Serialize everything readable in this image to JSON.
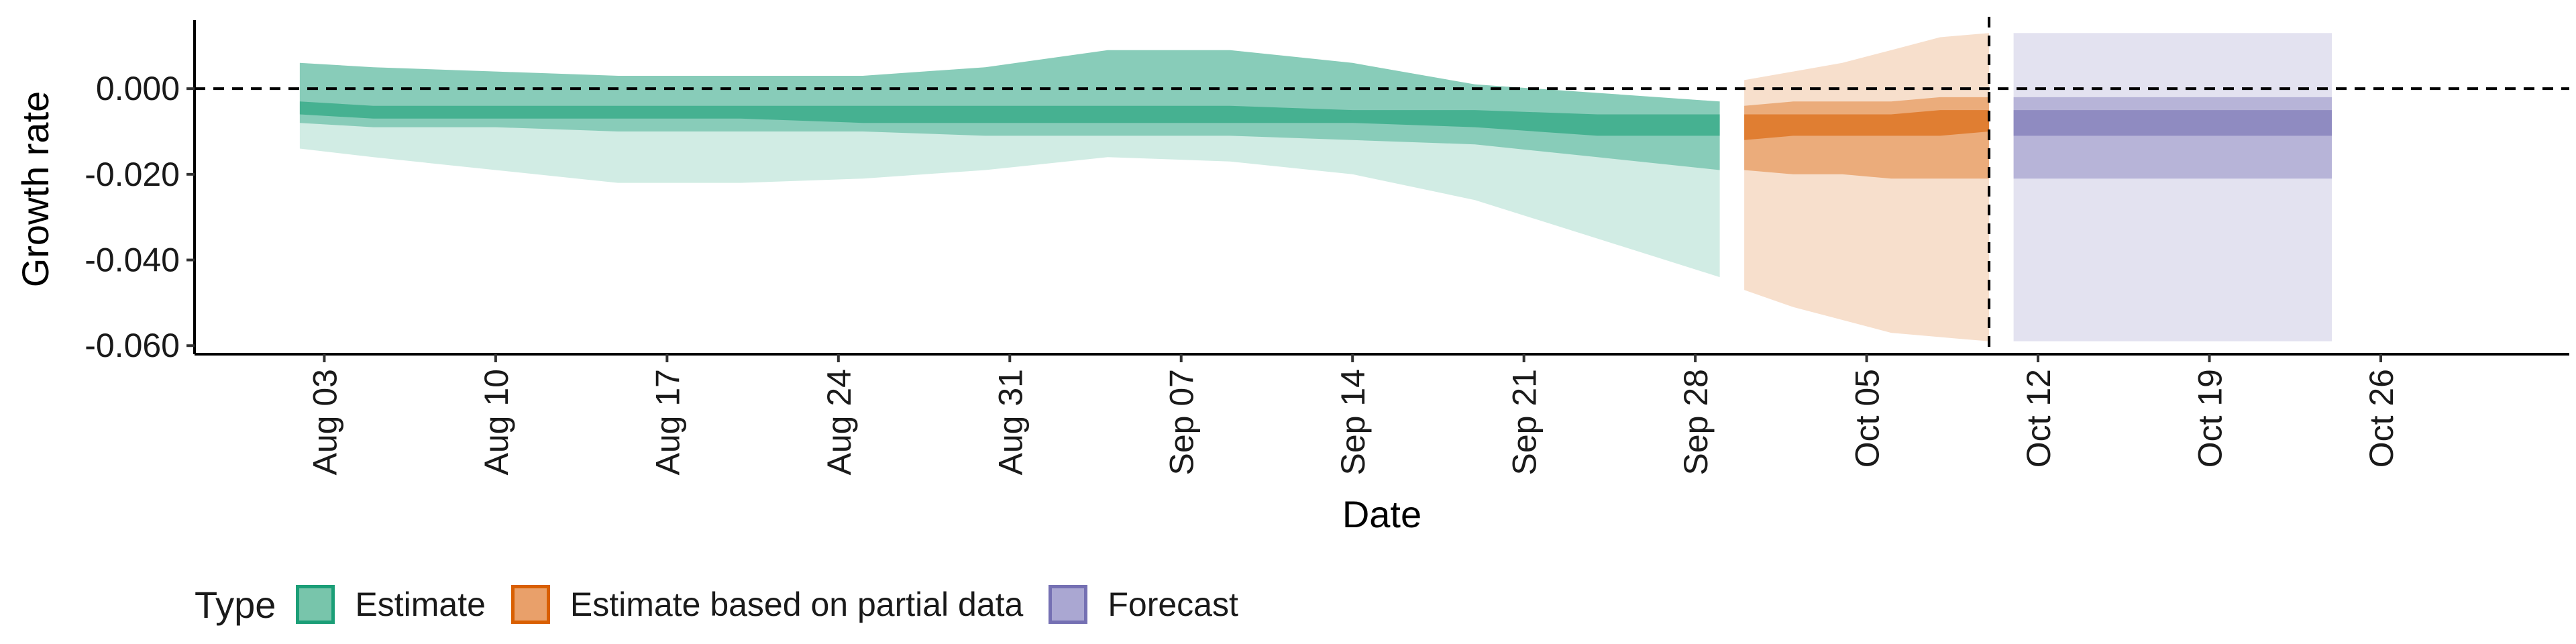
{
  "chart_data": {
    "type": "area",
    "title": "",
    "xlabel": "Date",
    "ylabel": "Growth rate",
    "ylim": [
      -0.062,
      0.016
    ],
    "y_ticks": [
      0.0,
      -0.02,
      -0.04,
      -0.06
    ],
    "y_tick_labels": [
      "0.000",
      "-0.020",
      "-0.040",
      "-0.060"
    ],
    "x_ticks": [
      3,
      10,
      17,
      24,
      31,
      38,
      45,
      52,
      59,
      66,
      73,
      80,
      87
    ],
    "x_tick_labels": [
      "Aug 03",
      "Aug 10",
      "Aug 17",
      "Aug 24",
      "Aug 31",
      "Sep 07",
      "Sep 14",
      "Sep 21",
      "Sep 28",
      "Oct 05",
      "Oct 12",
      "Oct 19",
      "Oct 26"
    ],
    "x_unit": "day number (Aug 1 = 1)",
    "xlim": [
      -2.3,
      94.7
    ],
    "reference_hline": 0.0,
    "reference_vline": 71.0,
    "legend": {
      "title": "Type",
      "position": "bottom-left",
      "items": [
        {
          "label": "Estimate",
          "fill": "#78c5ab",
          "border": "#1b9e77"
        },
        {
          "label": "Estimate based on partial data",
          "fill": "#e9a06a",
          "border": "#d95f02"
        },
        {
          "label": "Forecast",
          "fill": "#aaa7d2",
          "border": "#7570b3"
        }
      ]
    },
    "series": [
      {
        "name": "Estimate",
        "color": "#1b9e77",
        "x": [
          2,
          5,
          10,
          15,
          20,
          25,
          30,
          35,
          40,
          45,
          50,
          55,
          60
        ],
        "bands": [
          {
            "level": "90%",
            "opacity": 0.2,
            "lower": [
              -0.014,
              -0.016,
              -0.019,
              -0.022,
              -0.022,
              -0.021,
              -0.019,
              -0.016,
              -0.017,
              -0.02,
              -0.026,
              -0.035,
              -0.044
            ],
            "upper": [
              0.006,
              0.005,
              0.004,
              0.003,
              0.003,
              0.003,
              0.005,
              0.009,
              0.009,
              0.006,
              0.001,
              -0.001,
              -0.003
            ]
          },
          {
            "level": "50%",
            "opacity": 0.4,
            "lower": [
              -0.008,
              -0.009,
              -0.009,
              -0.01,
              -0.01,
              -0.01,
              -0.011,
              -0.011,
              -0.011,
              -0.012,
              -0.013,
              -0.016,
              -0.019
            ]
          },
          {
            "level": "20%",
            "opacity": 0.6,
            "lower": [
              -0.006,
              -0.007,
              -0.007,
              -0.007,
              -0.007,
              -0.008,
              -0.008,
              -0.008,
              -0.008,
              -0.008,
              -0.009,
              -0.011,
              -0.011
            ],
            "upper": [
              -0.003,
              -0.004,
              -0.004,
              -0.004,
              -0.004,
              -0.004,
              -0.004,
              -0.004,
              -0.004,
              -0.005,
              -0.005,
              -0.006,
              -0.006
            ]
          }
        ]
      },
      {
        "name": "Estimate based on partial data",
        "color": "#d95f02",
        "x": [
          61,
          63,
          65,
          67,
          69,
          71
        ],
        "bands": [
          {
            "level": "90%",
            "opacity": 0.2,
            "lower": [
              -0.047,
              -0.051,
              -0.054,
              -0.057,
              -0.058,
              -0.059
            ],
            "upper": [
              0.002,
              0.004,
              0.006,
              0.009,
              0.012,
              0.013
            ]
          },
          {
            "level": "50%",
            "opacity": 0.4,
            "lower": [
              -0.019,
              -0.02,
              -0.02,
              -0.021,
              -0.021,
              -0.021
            ],
            "upper": [
              -0.004,
              -0.003,
              -0.003,
              -0.003,
              -0.002,
              -0.002
            ]
          },
          {
            "level": "20%",
            "opacity": 0.6,
            "lower": [
              -0.012,
              -0.011,
              -0.011,
              -0.011,
              -0.011,
              -0.01
            ],
            "upper": [
              -0.006,
              -0.006,
              -0.006,
              -0.006,
              -0.005,
              -0.005
            ]
          }
        ]
      },
      {
        "name": "Forecast",
        "color": "#7570b3",
        "x": [
          72,
          85
        ],
        "bands": [
          {
            "level": "90%",
            "opacity": 0.2,
            "lower": [
              -0.059,
              -0.059
            ],
            "upper": [
              0.013,
              0.013
            ]
          },
          {
            "level": "50%",
            "opacity": 0.4,
            "lower": [
              -0.021,
              -0.021
            ],
            "upper": [
              -0.002,
              -0.002
            ]
          },
          {
            "level": "20%",
            "opacity": 0.6,
            "lower": [
              -0.011,
              -0.011
            ],
            "upper": [
              -0.005,
              -0.005
            ]
          }
        ]
      }
    ]
  }
}
